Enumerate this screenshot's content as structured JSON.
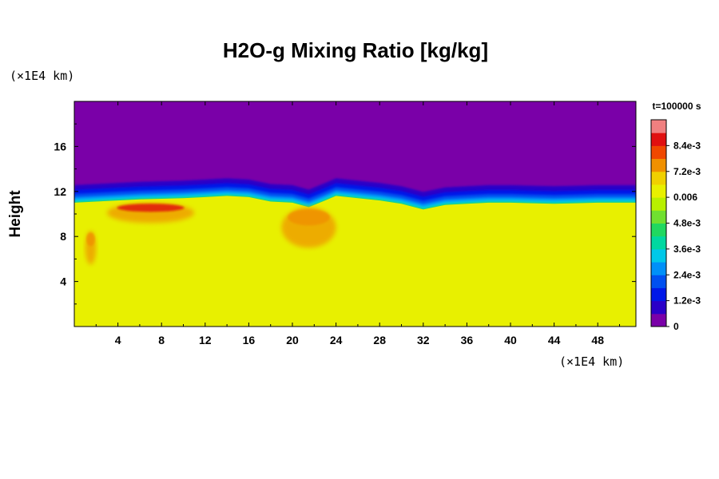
{
  "title": "H2O-g Mixing Ratio [kg/kg]",
  "ylabel": "Height",
  "y_unit": "(×1E4 km)",
  "x_unit": "(×1E4 km)",
  "time_label": "t=100000 s",
  "chart_data": {
    "type": "heatmap",
    "title": "H2O-g Mixing Ratio [kg/kg]",
    "xlabel": "",
    "ylabel": "Height",
    "xlim": [
      0,
      51.5
    ],
    "ylim": [
      0,
      20
    ],
    "x_ticks": [
      4,
      8,
      12,
      16,
      20,
      24,
      28,
      32,
      36,
      40,
      44,
      48
    ],
    "y_ticks": [
      4,
      8,
      12,
      16
    ],
    "colorbar": {
      "min": 0,
      "max": 0.0096,
      "tick_values": [
        0,
        0.0012,
        0.0024,
        0.0036,
        0.0048,
        0.006,
        0.0072,
        0.0084
      ],
      "tick_labels": [
        "0",
        "1.2e-3",
        "2.4e-3",
        "3.6e-3",
        "4.8e-3",
        "0.006",
        "7.2e-3",
        "8.4e-3"
      ],
      "colors": [
        "#7a00a8",
        "#2a00c8",
        "#0018e8",
        "#0050f0",
        "#0090f8",
        "#00c8e8",
        "#00d8a0",
        "#20d860",
        "#70e030",
        "#b8f000",
        "#e8f000",
        "#f0d000",
        "#f09000",
        "#f04800",
        "#e01010",
        "#f08080"
      ]
    },
    "boundary_height": [
      [
        0,
        11.0
      ],
      [
        2,
        11.1
      ],
      [
        4,
        11.2
      ],
      [
        6,
        11.3
      ],
      [
        8,
        11.35
      ],
      [
        10,
        11.4
      ],
      [
        12,
        11.5
      ],
      [
        14,
        11.6
      ],
      [
        16,
        11.5
      ],
      [
        18,
        11.1
      ],
      [
        20,
        11.0
      ],
      [
        21.5,
        10.6
      ],
      [
        23,
        11.2
      ],
      [
        24,
        11.6
      ],
      [
        26,
        11.4
      ],
      [
        28,
        11.2
      ],
      [
        30,
        10.9
      ],
      [
        32,
        10.4
      ],
      [
        34,
        10.8
      ],
      [
        36,
        10.9
      ],
      [
        38,
        11.0
      ],
      [
        40,
        11.0
      ],
      [
        42,
        10.95
      ],
      [
        44,
        10.9
      ],
      [
        46,
        10.95
      ],
      [
        48,
        11.0
      ],
      [
        50,
        11.0
      ],
      [
        51.5,
        11.0
      ]
    ],
    "lower_value": 0.006,
    "upper_value": 0,
    "high_moisture_patches": [
      {
        "x": [
          3,
          11
        ],
        "y": [
          9.2,
          11.0
        ],
        "value": 0.0084
      },
      {
        "x": [
          19,
          24
        ],
        "y": [
          7.0,
          10.6
        ],
        "value": 0.0072
      },
      {
        "x": [
          1,
          2
        ],
        "y": [
          5.5,
          8.5
        ],
        "value": 0.0072
      }
    ]
  }
}
